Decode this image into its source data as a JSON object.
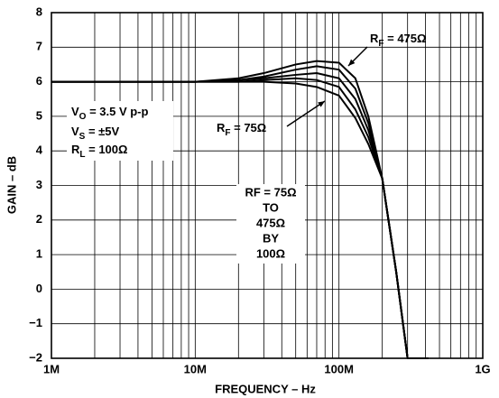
{
  "chart_data": {
    "type": "line",
    "xlabel": "FREQUENCY – Hz",
    "ylabel": "GAIN – dB",
    "xscale": "log",
    "grid": true,
    "xlim": [
      1000000,
      1000000000
    ],
    "ylim": [
      -2,
      8
    ],
    "xticks": [
      {
        "value": 1000000,
        "label": "1M"
      },
      {
        "value": 10000000,
        "label": "10M"
      },
      {
        "value": 100000000,
        "label": "100M"
      },
      {
        "value": 1000000000,
        "label": "1G"
      }
    ],
    "xminor_ticks": [
      2000000,
      3000000,
      4000000,
      5000000,
      6000000,
      7000000,
      8000000,
      9000000,
      20000000,
      30000000,
      40000000,
      50000000,
      60000000,
      70000000,
      80000000,
      90000000,
      200000000,
      300000000,
      400000000,
      500000000,
      600000000,
      700000000,
      800000000,
      900000000
    ],
    "yticks": [
      {
        "value": -2,
        "label": "−2"
      },
      {
        "value": -1,
        "label": "−1"
      },
      0,
      1,
      2,
      3,
      4,
      5,
      6,
      7,
      8
    ],
    "x": [
      1000000,
      10000000,
      20000000,
      30000000,
      50000000,
      70000000,
      100000000,
      130000000,
      160000000,
      200000000,
      250000000,
      300000000,
      420000000
    ],
    "series": [
      {
        "color": "#000000",
        "values": [
          6,
          6,
          6.1,
          6.25,
          6.5,
          6.6,
          6.55,
          6.1,
          5.0,
          3.2,
          0.5,
          -2,
          -2
        ]
      },
      {
        "color": "#000000",
        "values": [
          6,
          6,
          6.05,
          6.15,
          6.35,
          6.45,
          6.35,
          5.8,
          4.8,
          3.2,
          0.5,
          -2,
          -2
        ]
      },
      {
        "color": "#000000",
        "values": [
          6,
          6,
          6.05,
          6.1,
          6.2,
          6.25,
          6.1,
          5.5,
          4.6,
          3.2,
          0.5,
          -2,
          -2
        ]
      },
      {
        "color": "#000000",
        "values": [
          6,
          6,
          6.0,
          6.05,
          6.1,
          6.05,
          5.85,
          5.2,
          4.4,
          3.2,
          0.5,
          -2,
          -2
        ]
      },
      {
        "color": "#000000",
        "values": [
          6,
          6,
          6.0,
          6.0,
          5.95,
          5.85,
          5.6,
          4.95,
          4.2,
          3.2,
          0.5,
          -2,
          -2
        ]
      }
    ],
    "annotations": [
      {
        "base": "R",
        "sub": "F",
        "rest": " = 475Ω"
      },
      {
        "base": "R",
        "sub": "F",
        "rest": " = 75Ω"
      },
      {
        "base": "V",
        "sub": "O",
        "rest": " = 3.5 V p-p"
      },
      {
        "base": "V",
        "sub": "S",
        "rest": " = ±5V"
      },
      {
        "base": "R",
        "sub": "L",
        "rest": " = 100Ω"
      }
    ],
    "note_lines": [
      "RF = 75Ω",
      "TO",
      "475Ω",
      "BY",
      "100Ω"
    ]
  }
}
